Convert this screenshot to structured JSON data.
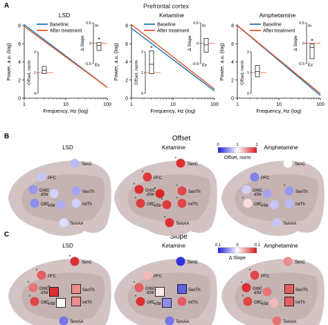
{
  "panel_letters": {
    "a": "A",
    "b": "B",
    "c": "C"
  },
  "region_title": "Prefrontal cortex",
  "chart_data": [
    {
      "type": "line",
      "panel": "A",
      "title": "LSD",
      "xlabel": "Frequency, Hz (log)",
      "ylabel": "Power, a.u. (log)",
      "xscale": "log",
      "xlim": [
        1,
        100
      ],
      "ylim": [
        0,
        8
      ],
      "xticks": [
        "1",
        "10",
        "100"
      ],
      "yticks": [
        "0",
        "2",
        "4",
        "6",
        "8"
      ],
      "legend": [
        "Baseline",
        "After treatment"
      ],
      "series": [
        {
          "name": "Baseline",
          "color": "#1f77b4",
          "x": [
            1,
            100
          ],
          "y": [
            8.1,
            1.2
          ]
        },
        {
          "name": "After treatment",
          "color": "#e2572c",
          "x": [
            1,
            100
          ],
          "y": [
            7.9,
            1.2
          ]
        }
      ],
      "inset_slope": {
        "label": "Δ Slope",
        "ticks": [
          "0.5",
          "0",
          "-0.5"
        ],
        "top_label": "In",
        "bottom_label": "Ex",
        "box": [
          -0.18,
          0.02
        ],
        "median": -0.05,
        "significant": true,
        "star": "*"
      },
      "inset_offset": {
        "label": "Offset, norm",
        "ticks": [
          "2",
          "1",
          "0"
        ],
        "box": [
          0.95,
          1.3
        ],
        "median": 1.12,
        "significant": false
      }
    },
    {
      "type": "line",
      "panel": "A",
      "title": "Ketamine",
      "xlabel": "Frequency, Hz (log)",
      "ylabel": "Power, a.u. (log)",
      "xscale": "log",
      "xlim": [
        1,
        100
      ],
      "ylim": [
        0,
        8
      ],
      "xticks": [
        "1",
        "10",
        "100"
      ],
      "yticks": [
        "0",
        "2",
        "4",
        "6",
        "8"
      ],
      "legend": [
        "Baseline",
        "After treatment"
      ],
      "series": [
        {
          "name": "Baseline",
          "color": "#1f77b4",
          "x": [
            1,
            100
          ],
          "y": [
            7.7,
            0.8
          ]
        },
        {
          "name": "After treatment",
          "color": "#e2572c",
          "x": [
            1,
            100
          ],
          "y": [
            8.1,
            1.0
          ]
        }
      ],
      "inset_slope": {
        "label": "Δ Slope",
        "ticks": [
          "0.5",
          "0",
          "-0.5"
        ],
        "top_label": "In",
        "bottom_label": "Ex",
        "box": [
          -0.22,
          0.12
        ],
        "median": -0.04,
        "significant": false
      },
      "inset_offset": {
        "label": "Offset, norm",
        "ticks": [
          "2",
          "1",
          "0"
        ],
        "box": [
          0.95,
          2.05
        ],
        "median": 1.4,
        "significant": true,
        "star": "*"
      }
    },
    {
      "type": "line",
      "panel": "A",
      "title": "Amphetamine",
      "xlabel": "Frequency, Hz (log)",
      "ylabel": "Power, a.u. (log)",
      "xscale": "log",
      "xlim": [
        1,
        100
      ],
      "ylim": [
        0,
        8
      ],
      "xticks": [
        "1",
        "10",
        "100"
      ],
      "yticks": [
        "0",
        "2",
        "4",
        "6",
        "8"
      ],
      "legend": [
        "Baseline",
        "After treatment"
      ],
      "series": [
        {
          "name": "Baseline",
          "color": "#1f77b4",
          "x": [
            1,
            100
          ],
          "y": [
            8.0,
            0.3
          ]
        },
        {
          "name": "After treatment",
          "color": "#e2572c",
          "x": [
            1,
            100
          ],
          "y": [
            8.0,
            0.5
          ]
        }
      ],
      "inset_slope": {
        "label": "Δ Slope",
        "ticks": [
          "0.5",
          "0",
          "-0.5"
        ],
        "top_label": "In",
        "bottom_label": "Ex",
        "box": [
          -0.38,
          -0.02
        ],
        "median": -0.1,
        "significant": true,
        "star": "*"
      },
      "inset_offset": {
        "label": "Offset, norm",
        "ticks": [
          "2",
          "1",
          "0"
        ],
        "box": [
          0.8,
          1.35
        ],
        "median": 1.05,
        "significant": false
      }
    },
    {
      "type": "heatmap",
      "panel": "B",
      "title": "Offset",
      "colorbar": {
        "label": "Offset, norm",
        "ticks": [
          "0",
          "1",
          "2"
        ],
        "range": [
          0,
          2
        ],
        "low_color": "#1b1bd6",
        "mid_color": "#ffffff",
        "high_color": "#d7191c"
      },
      "brains": [
        {
          "title": "LSD",
          "regions": [
            {
              "name": "SenC",
              "value": 0.7,
              "sig": false
            },
            {
              "name": "PFC",
              "value": 0.75,
              "sig": false
            },
            {
              "name": "OrbC",
              "value": 0.55,
              "sig": false
            },
            {
              "name": "dStr",
              "value": 0.8,
              "sig": false
            },
            {
              "name": "SenTh",
              "value": 0.6,
              "sig": false
            },
            {
              "name": "OlfC",
              "value": 0.5,
              "sig": false
            },
            {
              "name": "vStr",
              "value": 0.65,
              "sig": false
            },
            {
              "name": "IntTh",
              "value": 0.8,
              "sig": false
            },
            {
              "name": "TemAA",
              "value": 0.85,
              "sig": false
            }
          ]
        },
        {
          "title": "Ketamine",
          "regions": [
            {
              "name": "SenC",
              "value": 1.9,
              "sig": true
            },
            {
              "name": "PFC",
              "value": 1.85,
              "sig": true
            },
            {
              "name": "OrbC",
              "value": 1.9,
              "sig": true
            },
            {
              "name": "dStr",
              "value": 1.95,
              "sig": true
            },
            {
              "name": "SenTh",
              "value": 1.8,
              "sig": true
            },
            {
              "name": "OlfC",
              "value": 1.85,
              "sig": true
            },
            {
              "name": "vStr",
              "value": 1.85,
              "sig": true
            },
            {
              "name": "IntTh",
              "value": 1.8,
              "sig": true
            },
            {
              "name": "TemAA",
              "value": 1.9,
              "sig": true
            }
          ]
        },
        {
          "title": "Amphetamine",
          "regions": [
            {
              "name": "SenC",
              "value": 1.0,
              "sig": false
            },
            {
              "name": "PFC",
              "value": 0.45,
              "sig": false
            },
            {
              "name": "OrbC",
              "value": 0.8,
              "sig": false
            },
            {
              "name": "dStr",
              "value": 0.6,
              "sig": false
            },
            {
              "name": "SenTh",
              "value": 0.55,
              "sig": true
            },
            {
              "name": "OlfC",
              "value": 1.15,
              "sig": true
            },
            {
              "name": "vStr",
              "value": 0.75,
              "sig": false
            },
            {
              "name": "IntTh",
              "value": 0.7,
              "sig": false
            },
            {
              "name": "TemAA",
              "value": 0.75,
              "sig": false
            }
          ]
        }
      ]
    },
    {
      "type": "heatmap",
      "panel": "C",
      "title": "Slope",
      "colorbar": {
        "label": "Δ Slope",
        "ticks": [
          "0.1",
          "0",
          "-0.1"
        ],
        "range": [
          0.1,
          -0.1
        ],
        "low_color": "#1b1bd6",
        "mid_color": "#ffffff",
        "high_color": "#d7191c"
      },
      "brains": [
        {
          "title": "LSD",
          "regions": [
            {
              "name": "SenC",
              "value": -0.09,
              "sig": true,
              "boxed": false
            },
            {
              "name": "PFC",
              "value": -0.07,
              "sig": true,
              "boxed": false
            },
            {
              "name": "OrbC",
              "value": -0.06,
              "sig": true,
              "boxed": false
            },
            {
              "name": "dStr",
              "value": -0.09,
              "sig": true,
              "boxed": true
            },
            {
              "name": "SenTh",
              "value": -0.05,
              "sig": false,
              "boxed": true
            },
            {
              "name": "OlfC",
              "value": -0.08,
              "sig": true,
              "boxed": false
            },
            {
              "name": "vStr",
              "value": 0.0,
              "sig": false,
              "boxed": true
            },
            {
              "name": "IntTh",
              "value": -0.05,
              "sig": false,
              "boxed": true
            },
            {
              "name": "TemAA",
              "value": 0.06,
              "sig": false,
              "boxed": false
            }
          ]
        },
        {
          "title": "Ketamine",
          "regions": [
            {
              "name": "SenC",
              "value": 0.09,
              "sig": false,
              "boxed": false
            },
            {
              "name": "PFC",
              "value": -0.03,
              "sig": false,
              "boxed": false
            },
            {
              "name": "OrbC",
              "value": -0.07,
              "sig": true,
              "boxed": false
            },
            {
              "name": "dStr",
              "value": -0.01,
              "sig": false,
              "boxed": true
            },
            {
              "name": "SenTh",
              "value": 0.07,
              "sig": false,
              "boxed": true
            },
            {
              "name": "OlfC",
              "value": -0.09,
              "sig": true,
              "boxed": false
            },
            {
              "name": "vStr",
              "value": 0.05,
              "sig": false,
              "boxed": true
            },
            {
              "name": "IntTh",
              "value": -0.07,
              "sig": false,
              "boxed": false
            },
            {
              "name": "TemAA",
              "value": 0.06,
              "sig": false,
              "boxed": false
            }
          ]
        },
        {
          "title": "Amphetamine",
          "regions": [
            {
              "name": "SenC",
              "value": -0.05,
              "sig": false,
              "boxed": false
            },
            {
              "name": "PFC",
              "value": -0.08,
              "sig": true,
              "boxed": false
            },
            {
              "name": "OrbC",
              "value": -0.09,
              "sig": true,
              "boxed": false
            },
            {
              "name": "dStr",
              "value": -0.06,
              "sig": false,
              "boxed": false
            },
            {
              "name": "SenTh",
              "value": -0.07,
              "sig": false,
              "boxed": true
            },
            {
              "name": "OlfC",
              "value": -0.08,
              "sig": true,
              "boxed": false
            },
            {
              "name": "vStr",
              "value": -0.03,
              "sig": false,
              "boxed": false
            },
            {
              "name": "IntTh",
              "value": -0.07,
              "sig": false,
              "boxed": true
            },
            {
              "name": "TemAA",
              "value": -0.06,
              "sig": false,
              "boxed": false
            }
          ]
        }
      ]
    }
  ]
}
